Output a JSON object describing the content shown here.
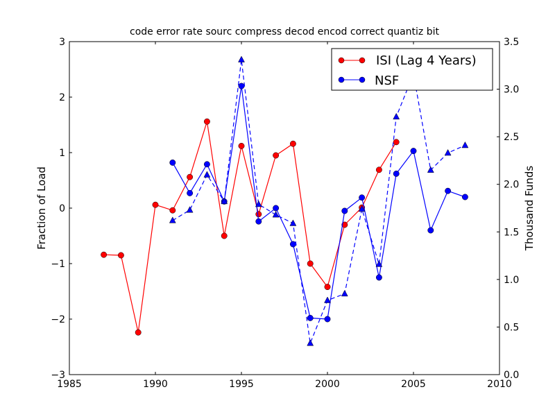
{
  "chart_data": {
    "type": "line",
    "title": "code error rate sourc compress decod encod correct quantiz bit",
    "xlabel": "",
    "ylabel": "Fraction of Load",
    "ylabel_right": "Thousand Funds",
    "xlim": [
      1985,
      2010
    ],
    "ylim": [
      -3,
      3
    ],
    "ylim_right": [
      0,
      3.5
    ],
    "xticks": [
      "1985",
      "1990",
      "1995",
      "2000",
      "2005",
      "2010"
    ],
    "yticks": [
      "−3",
      "−2",
      "−1",
      "0",
      "1",
      "2",
      "3"
    ],
    "yticks_right": [
      "0.0",
      "0.5",
      "1.0",
      "1.5",
      "2.0",
      "2.5",
      "3.0",
      "3.5"
    ],
    "grid": false,
    "legend_position": "top-right",
    "series": [
      {
        "name": "ISI (Lag 4 Years)",
        "axis": "left",
        "color": "#ff0000",
        "marker": "circle",
        "linestyle": "solid",
        "x": [
          1987,
          1988,
          1989,
          1990,
          1991,
          1992,
          1993,
          1994,
          1995,
          1996,
          1997,
          1998,
          1999,
          2000,
          2001,
          2002,
          2003,
          2004
        ],
        "y": [
          -0.84,
          -0.85,
          -2.24,
          0.06,
          -0.04,
          0.56,
          1.56,
          -0.5,
          1.12,
          -0.11,
          0.95,
          1.16,
          -1.0,
          -1.42,
          -0.3,
          0.01,
          0.69,
          1.19
        ]
      },
      {
        "name": "NSF",
        "axis": "left",
        "color": "#0000ff",
        "marker": "circle",
        "linestyle": "solid",
        "x": [
          1991,
          1992,
          1993,
          1994,
          1995,
          1996,
          1997,
          1998,
          1999,
          2000,
          2001,
          2002,
          2003,
          2004,
          2005,
          2006,
          2007,
          2008
        ],
        "y": [
          0.82,
          0.27,
          0.79,
          0.12,
          2.2,
          -0.24,
          0.0,
          -0.65,
          -1.98,
          -2.0,
          -0.05,
          0.19,
          -1.25,
          0.62,
          1.03,
          -0.4,
          0.31,
          0.2
        ]
      },
      {
        "name": "NSF funds",
        "axis": "right",
        "color": "#0000ff",
        "marker": "triangle",
        "linestyle": "dashed",
        "in_legend": false,
        "x": [
          1991,
          1992,
          1993,
          1994,
          1995,
          1996,
          1997,
          1998,
          1999,
          2000,
          2001,
          2002,
          2003,
          2004,
          2005,
          2006,
          2007,
          2008
        ],
        "y": [
          1.62,
          1.73,
          2.1,
          1.82,
          3.31,
          1.79,
          1.68,
          1.59,
          0.33,
          0.78,
          0.85,
          1.74,
          1.16,
          2.71,
          3.16,
          2.15,
          2.33,
          2.41
        ]
      }
    ]
  }
}
